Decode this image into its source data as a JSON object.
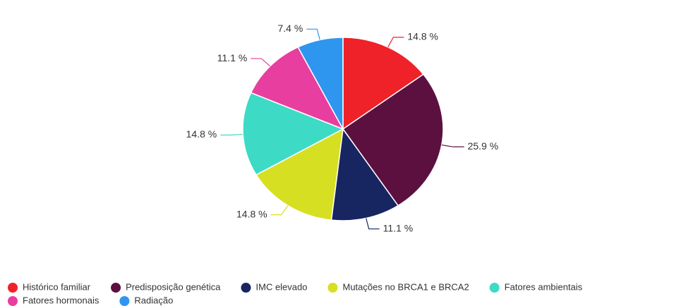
{
  "chart_data": {
    "type": "pie",
    "categories": [
      "Histórico familiar",
      "Predisposição genética",
      "IMC elevado",
      "Mutações no BRCA1 e BRCA2",
      "Fatores ambientais",
      "Fatores hormonais",
      "Radiação"
    ],
    "values": [
      14.8,
      25.9,
      11.1,
      14.8,
      14.8,
      11.1,
      7.4
    ],
    "value_labels": [
      "14.8 %",
      "25.9 %",
      "11.1 %",
      "14.8 %",
      "14.8 %",
      "11.1 %",
      "7.4 %"
    ],
    "colors": [
      "#ee2228",
      "#5c1040",
      "#172560",
      "#d7df23",
      "#3ddbc5",
      "#e83e9f",
      "#2f96ef"
    ],
    "legend": "bottom"
  }
}
